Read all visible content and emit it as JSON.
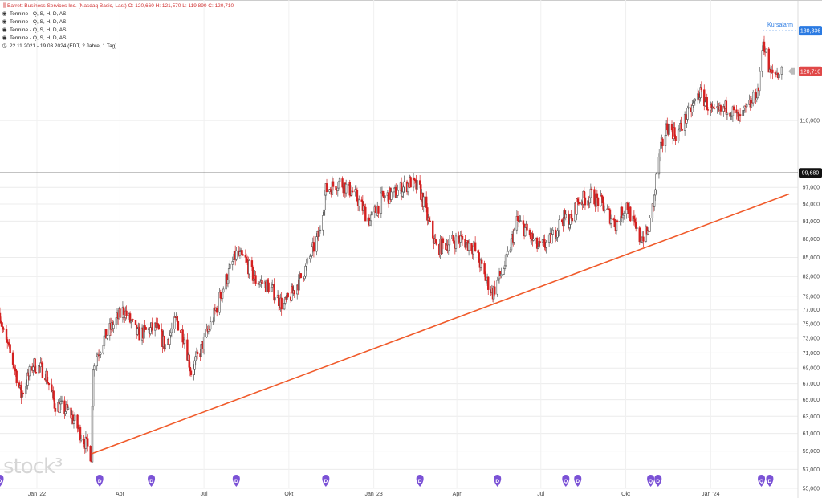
{
  "legend": {
    "title": "Barrett Business Services Inc. (Nasdaq Basic, Last)  O: 120,660  H: 121,570  L: 119,890  C: 120,710",
    "title_icon": "candlestick-icon",
    "rows": [
      {
        "icon": "eye-icon",
        "text": "Termine  - Q, S, H, D, AS"
      },
      {
        "icon": "eye-icon",
        "text": "Termine  - Q, S, H, D, AS"
      },
      {
        "icon": "eye-icon",
        "text": "Termine  - Q, S, H, D, AS"
      },
      {
        "icon": "eye-icon",
        "text": "Termine  - Q, S, H, D, AS"
      }
    ],
    "range": {
      "icon": "clock-icon",
      "text": "22.11.2021 - 19.03.2024  (EDT, 2 Jahre, 1 Tag)"
    }
  },
  "watermark": "stock³",
  "colors": {
    "up": "#555555",
    "down": "#d42020",
    "trendline": "#f05a2a",
    "alarm": "#2a7ae2",
    "last": "#e04848",
    "event": "#7b52d6",
    "hline": "#111111"
  },
  "chart_data": {
    "type": "candlestick",
    "title": "Barrett Business Services Inc. (Nasdaq Basic, Last)",
    "ohlc_last": {
      "open": 120.66,
      "high": 121.57,
      "low": 119.89,
      "close": 120.71
    },
    "x_range": [
      "2021-11-22",
      "2024-03-19"
    ],
    "x_ticks": [
      {
        "label": "Jan '22",
        "date": "2022-01-01"
      },
      {
        "label": "Apr",
        "date": "2022-04-01"
      },
      {
        "label": "Jul",
        "date": "2022-07-01"
      },
      {
        "label": "Okt",
        "date": "2022-10-01"
      },
      {
        "label": "Jan '23",
        "date": "2023-01-01"
      },
      {
        "label": "Apr",
        "date": "2023-04-01"
      },
      {
        "label": "Jul",
        "date": "2023-07-01"
      },
      {
        "label": "Okt",
        "date": "2023-10-01"
      },
      {
        "label": "Jan '24",
        "date": "2024-01-01"
      }
    ],
    "y_scale": "log",
    "y_range": [
      55.0,
      136.0
    ],
    "y_ticks": [
      "55,000",
      "57,000",
      "59,000",
      "61,000",
      "63,000",
      "65,000",
      "67,000",
      "69,000",
      "71,000",
      "73,000",
      "75,000",
      "77,000",
      "79,000",
      "82,000",
      "85,000",
      "88,000",
      "91,000",
      "94,000",
      "97,000",
      "110,000"
    ],
    "price_path": [
      {
        "date": "2021-11-22",
        "price": 76.5
      },
      {
        "date": "2021-11-26",
        "price": 73.5
      },
      {
        "date": "2021-12-08",
        "price": 69.0
      },
      {
        "date": "2021-12-15",
        "price": 65.5
      },
      {
        "date": "2021-12-28",
        "price": 69.5
      },
      {
        "date": "2022-01-10",
        "price": 68.5
      },
      {
        "date": "2022-01-20",
        "price": 64.5
      },
      {
        "date": "2022-02-05",
        "price": 63.5
      },
      {
        "date": "2022-02-20",
        "price": 60.5
      },
      {
        "date": "2022-03-01",
        "price": 58.5
      },
      {
        "date": "2022-03-03",
        "price": 69.5
      },
      {
        "date": "2022-03-15",
        "price": 73.0
      },
      {
        "date": "2022-04-05",
        "price": 77.0
      },
      {
        "date": "2022-04-20",
        "price": 73.5
      },
      {
        "date": "2022-05-10",
        "price": 74.5
      },
      {
        "date": "2022-05-20",
        "price": 72.0
      },
      {
        "date": "2022-06-01",
        "price": 75.5
      },
      {
        "date": "2022-06-10",
        "price": 73.0
      },
      {
        "date": "2022-06-17",
        "price": 68.5
      },
      {
        "date": "2022-06-28",
        "price": 71.5
      },
      {
        "date": "2022-07-10",
        "price": 75.5
      },
      {
        "date": "2022-07-25",
        "price": 81.5
      },
      {
        "date": "2022-08-05",
        "price": 85.5
      },
      {
        "date": "2022-08-15",
        "price": 84.5
      },
      {
        "date": "2022-08-25",
        "price": 81.5
      },
      {
        "date": "2022-09-10",
        "price": 80.5
      },
      {
        "date": "2022-09-25",
        "price": 77.5
      },
      {
        "date": "2022-10-05",
        "price": 79.5
      },
      {
        "date": "2022-10-20",
        "price": 83.5
      },
      {
        "date": "2022-11-03",
        "price": 89.0
      },
      {
        "date": "2022-11-10",
        "price": 96.5
      },
      {
        "date": "2022-11-25",
        "price": 98.0
      },
      {
        "date": "2022-12-10",
        "price": 96.0
      },
      {
        "date": "2022-12-28",
        "price": 91.0
      },
      {
        "date": "2023-01-10",
        "price": 95.0
      },
      {
        "date": "2023-01-25",
        "price": 96.0
      },
      {
        "date": "2023-02-10",
        "price": 98.0
      },
      {
        "date": "2023-02-20",
        "price": 96.5
      },
      {
        "date": "2023-03-01",
        "price": 91.0
      },
      {
        "date": "2023-03-10",
        "price": 86.5
      },
      {
        "date": "2023-03-25",
        "price": 87.5
      },
      {
        "date": "2023-04-05",
        "price": 88.0
      },
      {
        "date": "2023-04-20",
        "price": 86.5
      },
      {
        "date": "2023-05-01",
        "price": 82.0
      },
      {
        "date": "2023-05-10",
        "price": 79.5
      },
      {
        "date": "2023-05-25",
        "price": 84.5
      },
      {
        "date": "2023-06-05",
        "price": 91.0
      },
      {
        "date": "2023-06-15",
        "price": 89.5
      },
      {
        "date": "2023-06-28",
        "price": 86.5
      },
      {
        "date": "2023-07-10",
        "price": 87.5
      },
      {
        "date": "2023-07-25",
        "price": 91.5
      },
      {
        "date": "2023-08-03",
        "price": 91.0
      },
      {
        "date": "2023-08-10",
        "price": 94.5
      },
      {
        "date": "2023-08-25",
        "price": 95.5
      },
      {
        "date": "2023-09-05",
        "price": 94.0
      },
      {
        "date": "2023-09-20",
        "price": 90.5
      },
      {
        "date": "2023-10-02",
        "price": 94.0
      },
      {
        "date": "2023-10-15",
        "price": 88.0
      },
      {
        "date": "2023-10-25",
        "price": 89.0
      },
      {
        "date": "2023-11-01",
        "price": 95.0
      },
      {
        "date": "2023-11-05",
        "price": 102.0
      },
      {
        "date": "2023-11-15",
        "price": 109.0
      },
      {
        "date": "2023-11-25",
        "price": 107.0
      },
      {
        "date": "2023-12-10",
        "price": 112.0
      },
      {
        "date": "2023-12-20",
        "price": 116.0
      },
      {
        "date": "2024-01-05",
        "price": 111.0
      },
      {
        "date": "2024-01-20",
        "price": 113.0
      },
      {
        "date": "2024-02-01",
        "price": 110.0
      },
      {
        "date": "2024-02-15",
        "price": 114.0
      },
      {
        "date": "2024-02-22",
        "price": 117.0
      },
      {
        "date": "2024-02-27",
        "price": 128.0
      },
      {
        "date": "2024-03-05",
        "price": 120.0
      },
      {
        "date": "2024-03-19",
        "price": 120.71
      }
    ],
    "horizontal_line": {
      "value": 99.68,
      "label": "99,680"
    },
    "price_alarm": {
      "value": 130.336,
      "label": "130,336",
      "text": "Kursalarm"
    },
    "last_price": {
      "value": 120.71,
      "label": "120,710"
    },
    "trendline": [
      {
        "date": "2022-03-01",
        "value": 58.7
      },
      {
        "date": "2024-03-26",
        "value": 95.8
      }
    ],
    "events": [
      {
        "date": "2021-11-22",
        "label": "D"
      },
      {
        "date": "2022-03-10",
        "label": "D"
      },
      {
        "date": "2022-05-05",
        "label": "D"
      },
      {
        "date": "2022-08-05",
        "label": "D"
      },
      {
        "date": "2022-11-10",
        "label": "D"
      },
      {
        "date": "2023-02-20",
        "label": "D"
      },
      {
        "date": "2023-05-15",
        "label": "D"
      },
      {
        "date": "2023-07-28",
        "label": "Q"
      },
      {
        "date": "2023-08-10",
        "label": "D"
      },
      {
        "date": "2023-10-28",
        "label": "Q"
      },
      {
        "date": "2023-11-05",
        "label": "D"
      },
      {
        "date": "2024-02-25",
        "label": "Q"
      },
      {
        "date": "2024-03-05",
        "label": "D"
      }
    ]
  }
}
